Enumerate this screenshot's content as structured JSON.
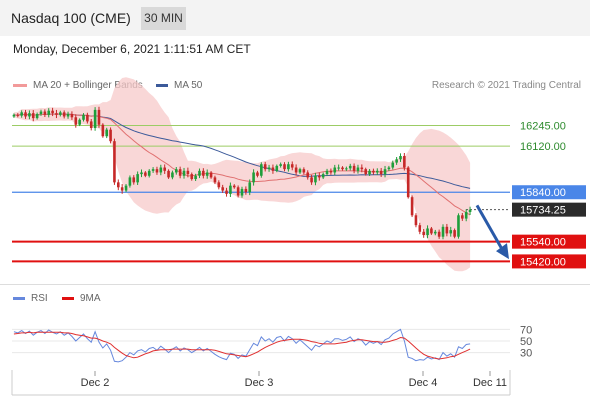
{
  "header": {
    "title": "Nasdaq 100 (CME)",
    "timeframe": "30 MIN"
  },
  "date_line": "Monday, December 6, 2021 1:11:51 AM CET",
  "credit": "Research © 2021 Trading Central",
  "colors": {
    "up_candle": "#1e9e3a",
    "down_candle": "#c62828",
    "ma20": "#e07070",
    "ma50": "#3c5a9a",
    "band": "#f7c9c9",
    "support_red": "#e01010",
    "resistance_green": "#9ccc65",
    "pivot_blue": "#4a86e8",
    "rsi": "#6688dd",
    "rsi_ma": "#e03030",
    "arrow": "#2a5aa8"
  },
  "chart_data": [
    {
      "type": "candlestick",
      "legend": [
        {
          "label": "MA 20 + Bollinger Bands",
          "color": "#e07070"
        },
        {
          "label": "MA 50",
          "color": "#3c5a9a"
        }
      ],
      "ylim": [
        15380,
        16400
      ],
      "x_ticks": [
        "Dec 2",
        "Dec 3",
        "Dec 4",
        "Dec 11"
      ],
      "levels": [
        {
          "value": 16245.0,
          "label": "16245.00",
          "kind": "resistance"
        },
        {
          "value": 16120.0,
          "label": "16120.00",
          "kind": "resistance"
        },
        {
          "value": 15840.0,
          "label": "15840.00",
          "kind": "pivot"
        },
        {
          "value": 15540.0,
          "label": "15540.00",
          "kind": "support"
        },
        {
          "value": 15420.0,
          "label": "15420.00",
          "kind": "support"
        }
      ],
      "last_price": {
        "value": 15734.25,
        "label": "15734.25"
      },
      "closes": [
        16310,
        16305,
        16325,
        16300,
        16320,
        16290,
        16315,
        16330,
        16310,
        16335,
        16320,
        16310,
        16325,
        16300,
        16315,
        16295,
        16250,
        16280,
        16310,
        16270,
        16230,
        16340,
        16250,
        16180,
        16220,
        16150,
        15900,
        15870,
        15850,
        15880,
        15930,
        15900,
        15950,
        15960,
        15940,
        15970,
        15980,
        15960,
        15990,
        15970,
        15930,
        15960,
        15980,
        15940,
        15970,
        15950,
        15920,
        15940,
        15970,
        15940,
        15960,
        15930,
        15900,
        15870,
        15850,
        15830,
        15880,
        15870,
        15820,
        15860,
        15840,
        15900,
        15960,
        15940,
        16010,
        15980,
        15990,
        15970,
        16000,
        16010,
        15980,
        16010,
        15990,
        15960,
        15980,
        15960,
        15930,
        15900,
        15940,
        15930,
        15950,
        15970,
        15960,
        15990,
        15990,
        15980,
        15985,
        16000,
        15970,
        15990,
        15980,
        15950,
        15970,
        15960,
        15970,
        15950,
        15980,
        15990,
        16020,
        16040,
        16060,
        15990,
        15810,
        15700,
        15640,
        15600,
        15580,
        15620,
        15590,
        15600,
        15570,
        15630,
        15590,
        15610,
        15570,
        15700,
        15680,
        15720,
        15734
      ]
    },
    {
      "type": "line",
      "legend": [
        {
          "label": "RSI",
          "color": "#6688dd"
        },
        {
          "label": "9MA",
          "color": "#e03030"
        }
      ],
      "ylim": [
        0,
        100
      ],
      "y_ticks": [
        "70",
        "50",
        "30"
      ],
      "rsi": [
        66,
        64,
        68,
        63,
        67,
        60,
        65,
        68,
        63,
        69,
        65,
        62,
        66,
        60,
        64,
        58,
        50,
        56,
        62,
        54,
        48,
        66,
        48,
        38,
        45,
        34,
        15,
        14,
        16,
        22,
        30,
        26,
        33,
        35,
        31,
        37,
        39,
        34,
        41,
        36,
        30,
        36,
        40,
        33,
        38,
        35,
        30,
        34,
        39,
        33,
        37,
        32,
        27,
        23,
        20,
        18,
        29,
        27,
        20,
        26,
        24,
        35,
        46,
        42,
        57,
        50,
        54,
        48,
        56,
        58,
        50,
        58,
        54,
        46,
        52,
        46,
        40,
        34,
        43,
        40,
        45,
        50,
        47,
        54,
        54,
        51,
        53,
        57,
        49,
        54,
        51,
        43,
        49,
        46,
        49,
        44,
        52,
        55,
        62,
        66,
        70,
        50,
        22,
        20,
        16,
        18,
        17,
        22,
        19,
        21,
        18,
        30,
        24,
        28,
        22,
        40,
        37,
        44,
        45
      ],
      "ma9": [
        62,
        63,
        64,
        64,
        65,
        64,
        65,
        65,
        65,
        65,
        65,
        65,
        65,
        64,
        64,
        63,
        61,
        60,
        59,
        57,
        55,
        55,
        53,
        50,
        48,
        45,
        39,
        34,
        29,
        25,
        23,
        21,
        22,
        25,
        28,
        30,
        33,
        34,
        35,
        35,
        35,
        36,
        36,
        36,
        36,
        36,
        35,
        35,
        35,
        35,
        35,
        35,
        34,
        32,
        30,
        28,
        27,
        26,
        25,
        24,
        23,
        25,
        28,
        31,
        35,
        39,
        42,
        45,
        48,
        50,
        51,
        52,
        53,
        53,
        53,
        52,
        51,
        49,
        48,
        46,
        45,
        45,
        45,
        45,
        46,
        47,
        48,
        50,
        51,
        52,
        52,
        51,
        50,
        49,
        49,
        48,
        48,
        49,
        51,
        53,
        56,
        55,
        50,
        44,
        38,
        32,
        27,
        24,
        22,
        20,
        19,
        20,
        21,
        23,
        24,
        27,
        30,
        33,
        36
      ]
    }
  ]
}
